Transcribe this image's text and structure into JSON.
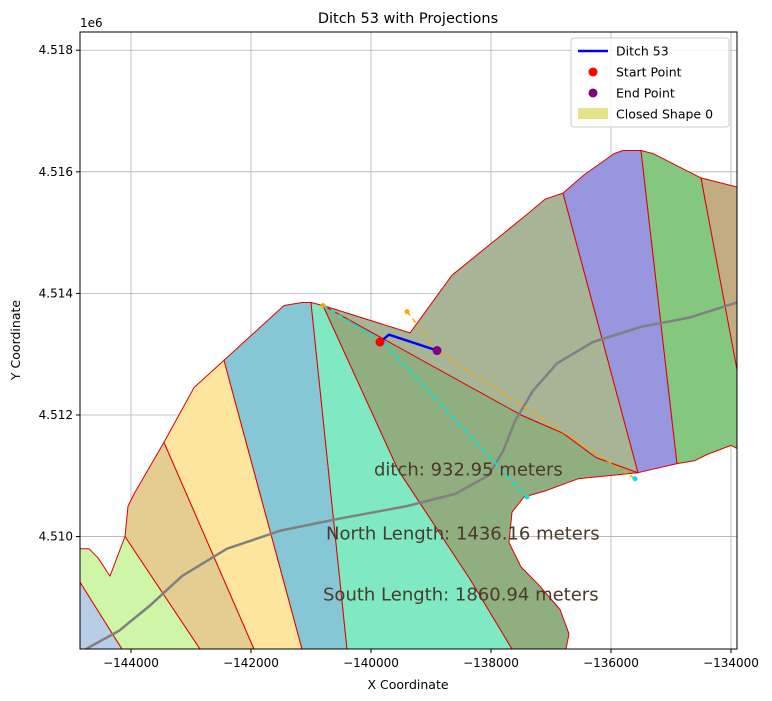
{
  "chart_data": {
    "type": "line",
    "title": "Ditch 53 with Projections",
    "xlabel": "X Coordinate",
    "ylabel": "Y Coordinate",
    "y_offset_label": "1e6",
    "xlim": [
      -144850,
      -133900
    ],
    "ylim": [
      4508150,
      4518300
    ],
    "xticks": [
      {
        "value": -144000,
        "label": "−144000"
      },
      {
        "value": -142000,
        "label": "−142000"
      },
      {
        "value": -140000,
        "label": "−140000"
      },
      {
        "value": -138000,
        "label": "−138000"
      },
      {
        "value": -136000,
        "label": "−136000"
      },
      {
        "value": -134000,
        "label": "−134000"
      }
    ],
    "yticks": [
      {
        "value": 4510000,
        "label": "4.510"
      },
      {
        "value": 4512000,
        "label": "4.512"
      },
      {
        "value": 4514000,
        "label": "4.514"
      },
      {
        "value": 4516000,
        "label": "4.516"
      },
      {
        "value": 4518000,
        "label": "4.518"
      }
    ],
    "grid": true,
    "legend": {
      "placement": "top-right",
      "entries": [
        {
          "label": "Ditch 53",
          "kind": "line",
          "color": "#0000ff"
        },
        {
          "label": "Start Point",
          "kind": "point",
          "color": "#ff0000"
        },
        {
          "label": "End Point",
          "kind": "point",
          "color": "#800080"
        },
        {
          "label": "Closed Shape 0",
          "kind": "patch",
          "color": "#e6e48a"
        }
      ]
    },
    "regions": [
      {
        "color": "#b8cde6",
        "points": [
          [
            -144850,
            4509250
          ],
          [
            -144150,
            4508150
          ],
          [
            -144850,
            4508150
          ]
        ]
      },
      {
        "color": "#cff5a6",
        "points": [
          [
            -144850,
            4509800
          ],
          [
            -144700,
            4509800
          ],
          [
            -144550,
            4509650
          ],
          [
            -144350,
            4509350
          ],
          [
            -144100,
            4510000
          ],
          [
            -142850,
            4508150
          ],
          [
            -144150,
            4508150
          ],
          [
            -144850,
            4509250
          ]
        ]
      },
      {
        "color": "#e4cd90",
        "points": [
          [
            -144100,
            4510000
          ],
          [
            -144050,
            4510500
          ],
          [
            -143950,
            4510700
          ],
          [
            -143450,
            4511550
          ],
          [
            -141950,
            4508150
          ],
          [
            -142850,
            4508150
          ]
        ]
      },
      {
        "color": "#fde59d",
        "points": [
          [
            -143450,
            4511550
          ],
          [
            -142950,
            4512450
          ],
          [
            -142450,
            4512900
          ],
          [
            -141150,
            4508150
          ],
          [
            -141950,
            4508150
          ]
        ]
      },
      {
        "color": "#86c7d5",
        "points": [
          [
            -142450,
            4512900
          ],
          [
            -141450,
            4513800
          ],
          [
            -141150,
            4513850
          ],
          [
            -141000,
            4513850
          ],
          [
            -140400,
            4508150
          ],
          [
            -141150,
            4508150
          ]
        ]
      },
      {
        "color": "#7fe9c3",
        "points": [
          [
            -141000,
            4513850
          ],
          [
            -140800,
            4513800
          ],
          [
            -139550,
            4511100
          ],
          [
            -138350,
            4509300
          ],
          [
            -137650,
            4508150
          ],
          [
            -140400,
            4508150
          ]
        ]
      },
      {
        "color": "#8faf80",
        "points": [
          [
            -140800,
            4513800
          ],
          [
            -139400,
            4513300
          ],
          [
            -137500,
            4512000
          ],
          [
            -136800,
            4511700
          ],
          [
            -136250,
            4511300
          ],
          [
            -135550,
            4511050
          ],
          [
            -136550,
            4510950
          ],
          [
            -137100,
            4510750
          ],
          [
            -137450,
            4510650
          ],
          [
            -137650,
            4510400
          ],
          [
            -137700,
            4509900
          ],
          [
            -137500,
            4509500
          ],
          [
            -137200,
            4509200
          ],
          [
            -136850,
            4508800
          ],
          [
            -136700,
            4508400
          ],
          [
            -136750,
            4508150
          ],
          [
            -137650,
            4508150
          ],
          [
            -138350,
            4509300
          ],
          [
            -139550,
            4511100
          ]
        ]
      },
      {
        "color": "#a8b496",
        "points": [
          [
            -140800,
            4513800
          ],
          [
            -139350,
            4513350
          ],
          [
            -138650,
            4514300
          ],
          [
            -137400,
            4515300
          ],
          [
            -137100,
            4515550
          ],
          [
            -136800,
            4515650
          ],
          [
            -135550,
            4511050
          ],
          [
            -136250,
            4511300
          ],
          [
            -136800,
            4511700
          ],
          [
            -137500,
            4512000
          ]
        ]
      },
      {
        "color": "#9896de",
        "points": [
          [
            -136800,
            4515650
          ],
          [
            -136450,
            4515950
          ],
          [
            -135950,
            4516300
          ],
          [
            -135800,
            4516350
          ],
          [
            -135500,
            4516350
          ],
          [
            -134900,
            4511200
          ],
          [
            -135550,
            4511050
          ]
        ]
      },
      {
        "color": "#84c880",
        "points": [
          [
            -135500,
            4516350
          ],
          [
            -135300,
            4516300
          ],
          [
            -134800,
            4516050
          ],
          [
            -134500,
            4515900
          ],
          [
            -133900,
            4512750
          ],
          [
            -133900,
            4511450
          ],
          [
            -134000,
            4511500
          ],
          [
            -134400,
            4511350
          ],
          [
            -134600,
            4511250
          ],
          [
            -134900,
            4511200
          ]
        ]
      },
      {
        "color": "#c2ad83",
        "points": [
          [
            -134500,
            4515900
          ],
          [
            -133900,
            4515750
          ],
          [
            -133900,
            4512750
          ]
        ]
      }
    ],
    "road": [
      [
        -144750,
        4508150
      ],
      [
        -144200,
        4508450
      ],
      [
        -143700,
        4508850
      ],
      [
        -143150,
        4509350
      ],
      [
        -142400,
        4509800
      ],
      [
        -141500,
        4510100
      ],
      [
        -140500,
        4510300
      ],
      [
        -139400,
        4510500
      ],
      [
        -138600,
        4510700
      ],
      [
        -138050,
        4511000
      ],
      [
        -137800,
        4511400
      ],
      [
        -137600,
        4511900
      ],
      [
        -137300,
        4512400
      ],
      [
        -136900,
        4512850
      ],
      [
        -136300,
        4513200
      ],
      [
        -135500,
        4513450
      ],
      [
        -134700,
        4513600
      ],
      [
        -133900,
        4513850
      ]
    ],
    "ditch_line": [
      [
        -139850,
        4513200
      ],
      [
        -139700,
        4513320
      ],
      [
        -138900,
        4513060
      ]
    ],
    "start_point": [
      -139850,
      4513200
    ],
    "end_point": [
      -138900,
      4513060
    ],
    "north_projection": [
      [
        -140800,
        4513800
      ],
      [
        -139800,
        4513200
      ],
      [
        -137400,
        4510650
      ]
    ],
    "south_projection": [
      [
        -139400,
        4513700
      ],
      [
        -138900,
        4513060
      ],
      [
        -135600,
        4510950
      ]
    ],
    "annotations": [
      {
        "text": "ditch: 932.95 meters",
        "x": -139950,
        "y": 4511100
      },
      {
        "text": "North Length: 1436.16 meters",
        "x": -140750,
        "y": 4510050
      },
      {
        "text": "South Length: 1860.94 meters",
        "x": -140800,
        "y": 4509050
      }
    ],
    "colors": {
      "ditch": "#0000ff",
      "start": "#ff0000",
      "end": "#800080",
      "boundary": "#dd0000",
      "road": "#808080",
      "north_projection": "#00e5e5",
      "south_projection": "#ffa500",
      "annotation": "#4a3a2a"
    }
  }
}
